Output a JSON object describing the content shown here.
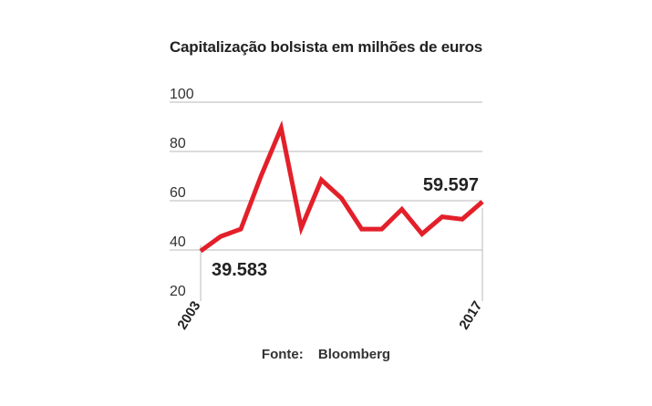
{
  "chart_data": {
    "type": "line",
    "title": "Capitalização bolsista em milhões de euros",
    "x": [
      2003,
      2004,
      2005,
      2006,
      2007,
      2008,
      2009,
      2010,
      2011,
      2012,
      2013,
      2014,
      2015,
      2016,
      2017
    ],
    "x_tick_labels": [
      "2003",
      "2017"
    ],
    "series": [
      {
        "values": [
          39.583,
          45.5,
          48.5,
          70,
          89.5,
          49,
          68.5,
          61,
          48.5,
          48.5,
          56.5,
          46.5,
          53.5,
          52.5,
          59.597
        ]
      }
    ],
    "y_ticks": [
      "20",
      "40",
      "60",
      "80",
      "100"
    ],
    "ylim": [
      20,
      100
    ],
    "data_labels": [
      {
        "index": 0,
        "text": "39.583"
      },
      {
        "index": 14,
        "text": "59.597"
      }
    ],
    "grid": "horizontal",
    "line_color": "#e3202a"
  },
  "source": {
    "label": "Fonte:",
    "value": "Bloomberg"
  }
}
